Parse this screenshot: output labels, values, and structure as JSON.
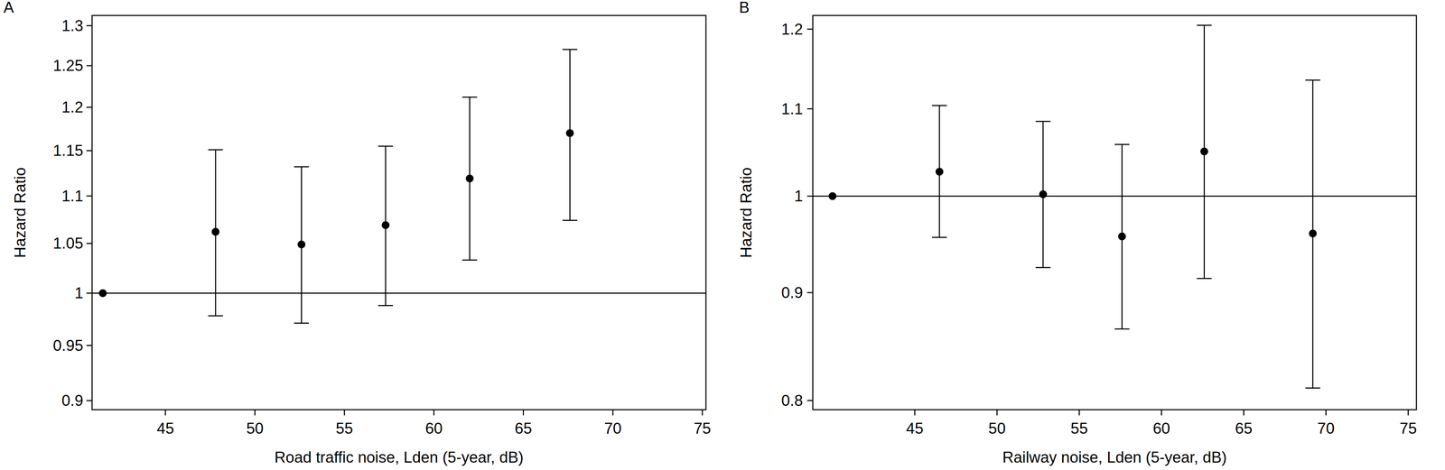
{
  "chart_data": [
    {
      "type": "scatter",
      "title": "A",
      "x_label": "Road traffic noise, Lden (5-year, dB)",
      "y_label": "Hazard Ratio",
      "log": "y",
      "xlim": [
        40.9,
        75.2
      ],
      "ylim": [
        0.892,
        1.313
      ],
      "xticks": [
        45,
        50,
        55,
        60,
        65,
        70,
        75
      ],
      "yticks": [
        0.9,
        0.95,
        1,
        1.05,
        1.1,
        1.15,
        1.2,
        1.25,
        1.3
      ],
      "reference_line": 1,
      "series": [
        {
          "color": "#000000",
          "marker": "circle",
          "x": [
            41.5,
            47.8,
            52.6,
            57.3,
            62.0,
            67.6
          ],
          "values": [
            1,
            1.062,
            1.049,
            1.069,
            1.119,
            1.17
          ],
          "ci_lower": [
            null,
            0.978,
            0.971,
            0.988,
            1.033,
            1.074
          ],
          "ci_upper": [
            null,
            1.151,
            1.132,
            1.155,
            1.212,
            1.27
          ]
        }
      ]
    },
    {
      "type": "scatter",
      "title": "B",
      "x_label": "Railway noise, Lden (5-year, dB)",
      "y_label": "Hazard Ratio",
      "log": "y",
      "xlim": [
        38.8,
        75.5
      ],
      "ylim": [
        0.792,
        1.218
      ],
      "xticks": [
        45,
        50,
        55,
        60,
        65,
        70,
        75
      ],
      "yticks": [
        0.8,
        0.9,
        1,
        1.1,
        1.2
      ],
      "reference_line": 1,
      "series": [
        {
          "color": "#000000",
          "marker": "circle",
          "x": [
            40.0,
            46.5,
            52.8,
            57.6,
            62.6,
            69.2
          ],
          "values": [
            1,
            1.027,
            1.002,
            0.957,
            1.05,
            0.96
          ],
          "ci_lower": [
            null,
            0.956,
            0.925,
            0.865,
            0.914,
            0.811
          ],
          "ci_upper": [
            null,
            1.104,
            1.085,
            1.058,
            1.205,
            1.135
          ]
        }
      ]
    }
  ]
}
